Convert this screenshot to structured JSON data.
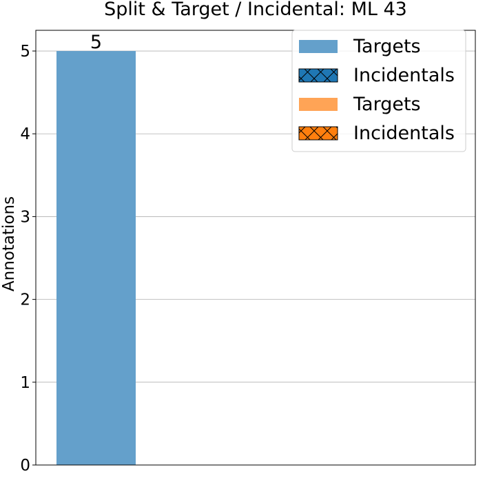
{
  "chart_data": {
    "type": "bar",
    "title": "Split & Target / Incidental: ML 43",
    "xlabel": "",
    "ylabel": "Annotations",
    "ylim": [
      0,
      5.25
    ],
    "yticks": [
      "0",
      "1",
      "2",
      "3",
      "4",
      "5"
    ],
    "grid": "y",
    "legend_position": "top-right",
    "categories": [
      ""
    ],
    "series": [
      {
        "name": "Targets",
        "values": [
          5
        ],
        "color": "#64a0cb",
        "hatch": "none",
        "data_labels": [
          "5"
        ]
      },
      {
        "name": "Incidentals",
        "values": [
          0
        ],
        "color": "#1f77b4",
        "hatch": "cross"
      },
      {
        "name": "Targets",
        "values": [
          0
        ],
        "color": "#ffa456",
        "hatch": "none"
      },
      {
        "name": "Incidentals",
        "values": [
          0
        ],
        "color": "#ff7f0e",
        "hatch": "cross"
      }
    ]
  }
}
